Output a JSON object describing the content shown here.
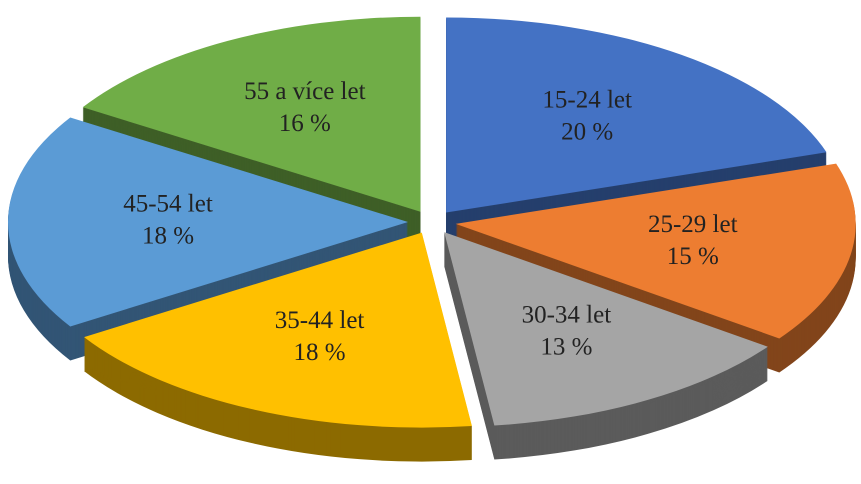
{
  "chart_data": {
    "type": "pie",
    "categories": [
      "15-24 let",
      "25-29 let",
      "30-34 let",
      "35-44 let",
      "45-54 let",
      "55 a více let"
    ],
    "values": [
      20,
      15,
      13,
      18,
      18,
      16
    ],
    "value_labels": [
      "20 %",
      "15 %",
      "13 %",
      "18 %",
      "18 %",
      "16 %"
    ],
    "colors": [
      "#4472c4",
      "#ed7d31",
      "#a5a5a5",
      "#ffc000",
      "#5b9bd5",
      "#70ad47"
    ]
  }
}
